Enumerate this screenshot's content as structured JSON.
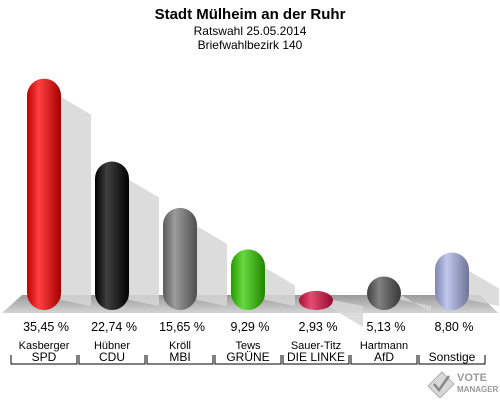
{
  "header": {
    "title": "Stadt Mülheim an der Ruhr",
    "subtitle": "Ratswahl 25.05.2014",
    "district": "Briefwahlbezirk 140"
  },
  "chart_data": {
    "type": "bar",
    "title": "Stadt Mülheim an der Ruhr",
    "categories": [
      "Kasberger",
      "Hübner",
      "Kröll",
      "Tews",
      "Sauer-Titz",
      "Hartmann",
      ""
    ],
    "parties": [
      "SPD",
      "CDU",
      "MBI",
      "GRÜNE",
      "DIE LINKE",
      "AfD",
      "Sonstige"
    ],
    "values": [
      35.45,
      22.74,
      15.65,
      9.29,
      2.93,
      5.13,
      8.8
    ],
    "value_labels": [
      "35,45 %",
      "22,74 %",
      "15,65 %",
      "9,29 %",
      "2,93 %",
      "5,13 %",
      "8,80 %"
    ],
    "colors": [
      "#ff0000",
      "#000000",
      "#7a7a7a",
      "#33cc00",
      "#dd1144",
      "#555555",
      "#aab4e8"
    ],
    "ylim": [
      0,
      36
    ],
    "grid": false,
    "legend": "none"
  },
  "logo": {
    "line1": "VOTE",
    "line2": "MANAGER"
  }
}
